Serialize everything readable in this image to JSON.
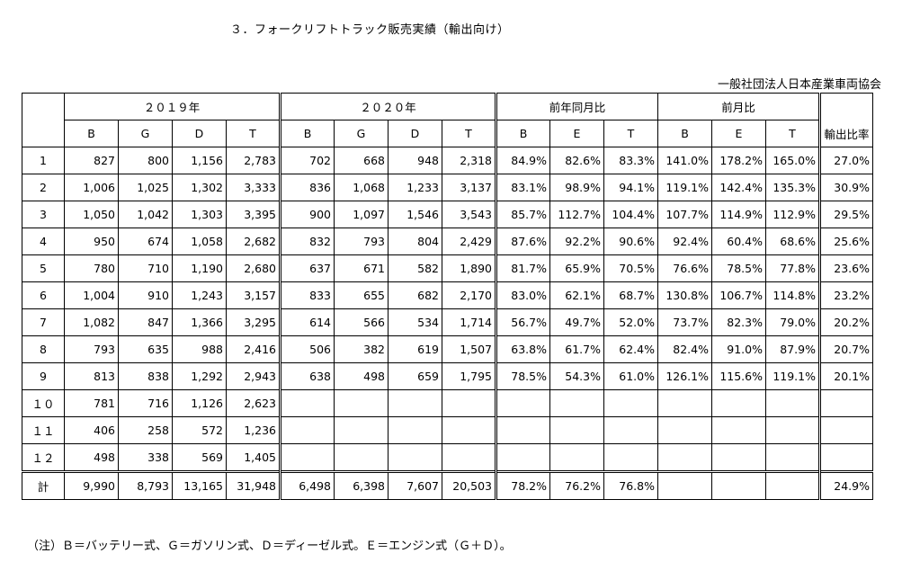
{
  "title": "３．フォークリフトトラック販売実績（輸出向け）",
  "org": "一般社団法人日本産業車両協会",
  "note": "（注）Ｂ＝バッテリー式、Ｇ＝ガソリン式、Ｄ＝ディーゼル式。Ｅ＝エンジン式（Ｇ＋Ｄ）。",
  "headers": {
    "y2019": "２０１９年",
    "y2020": "２０２０年",
    "yoy": "前年同月比",
    "mom": "前月比",
    "export_ratio": "輸出比率",
    "sub": [
      "B",
      "G",
      "D",
      "T",
      "B",
      "G",
      "D",
      "T",
      "B",
      "E",
      "T",
      "B",
      "E",
      "T"
    ]
  },
  "rows": [
    {
      "m": "1",
      "c": [
        "827",
        "800",
        "1,156",
        "2,783",
        "702",
        "668",
        "948",
        "2,318",
        "84.9%",
        "82.6%",
        "83.3%",
        "141.0%",
        "178.2%",
        "165.0%",
        "27.0%"
      ]
    },
    {
      "m": "2",
      "c": [
        "1,006",
        "1,025",
        "1,302",
        "3,333",
        "836",
        "1,068",
        "1,233",
        "3,137",
        "83.1%",
        "98.9%",
        "94.1%",
        "119.1%",
        "142.4%",
        "135.3%",
        "30.9%"
      ]
    },
    {
      "m": "3",
      "c": [
        "1,050",
        "1,042",
        "1,303",
        "3,395",
        "900",
        "1,097",
        "1,546",
        "3,543",
        "85.7%",
        "112.7%",
        "104.4%",
        "107.7%",
        "114.9%",
        "112.9%",
        "29.5%"
      ]
    },
    {
      "m": "4",
      "c": [
        "950",
        "674",
        "1,058",
        "2,682",
        "832",
        "793",
        "804",
        "2,429",
        "87.6%",
        "92.2%",
        "90.6%",
        "92.4%",
        "60.4%",
        "68.6%",
        "25.6%"
      ]
    },
    {
      "m": "5",
      "c": [
        "780",
        "710",
        "1,190",
        "2,680",
        "637",
        "671",
        "582",
        "1,890",
        "81.7%",
        "65.9%",
        "70.5%",
        "76.6%",
        "78.5%",
        "77.8%",
        "23.6%"
      ]
    },
    {
      "m": "6",
      "c": [
        "1,004",
        "910",
        "1,243",
        "3,157",
        "833",
        "655",
        "682",
        "2,170",
        "83.0%",
        "62.1%",
        "68.7%",
        "130.8%",
        "106.7%",
        "114.8%",
        "23.2%"
      ]
    },
    {
      "m": "7",
      "c": [
        "1,082",
        "847",
        "1,366",
        "3,295",
        "614",
        "566",
        "534",
        "1,714",
        "56.7%",
        "49.7%",
        "52.0%",
        "73.7%",
        "82.3%",
        "79.0%",
        "20.2%"
      ]
    },
    {
      "m": "8",
      "c": [
        "793",
        "635",
        "988",
        "2,416",
        "506",
        "382",
        "619",
        "1,507",
        "63.8%",
        "61.7%",
        "62.4%",
        "82.4%",
        "91.0%",
        "87.9%",
        "20.7%"
      ]
    },
    {
      "m": "9",
      "c": [
        "813",
        "838",
        "1,292",
        "2,943",
        "638",
        "498",
        "659",
        "1,795",
        "78.5%",
        "54.3%",
        "61.0%",
        "126.1%",
        "115.6%",
        "119.1%",
        "20.1%"
      ]
    },
    {
      "m": "１０",
      "c": [
        "781",
        "716",
        "1,126",
        "2,623",
        "",
        "",
        "",
        "",
        "",
        "",
        "",
        "",
        "",
        "",
        ""
      ]
    },
    {
      "m": "１１",
      "c": [
        "406",
        "258",
        "572",
        "1,236",
        "",
        "",
        "",
        "",
        "",
        "",
        "",
        "",
        "",
        "",
        ""
      ]
    },
    {
      "m": "１２",
      "c": [
        "498",
        "338",
        "569",
        "1,405",
        "",
        "",
        "",
        "",
        "",
        "",
        "",
        "",
        "",
        "",
        ""
      ]
    }
  ],
  "total": {
    "m": "計",
    "c": [
      "9,990",
      "8,793",
      "13,165",
      "31,948",
      "6,498",
      "6,398",
      "7,607",
      "20,503",
      "78.2%",
      "76.2%",
      "76.8%",
      "",
      "",
      "",
      "24.9%"
    ]
  }
}
